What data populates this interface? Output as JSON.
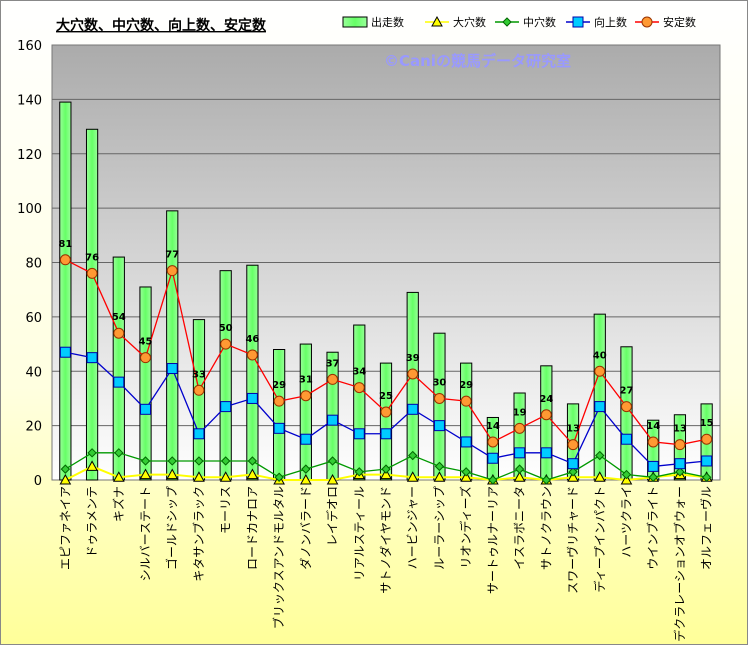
{
  "chart_data": {
    "type": "bar",
    "title": "大穴数、中穴数、向上数、安定数",
    "watermark": "©Caniの競馬データ研究室",
    "xlabel": "",
    "ylabel": "",
    "ylim": [
      0,
      160
    ],
    "yticks": [
      0,
      20,
      40,
      60,
      80,
      100,
      120,
      140,
      160
    ],
    "grid": true,
    "legend_position": "top-right",
    "categories": [
      "エピファネイア",
      "ドゥラメンテ",
      "キズナ",
      "シルバーステート",
      "ゴールドシップ",
      "キタサンブラック",
      "モーリス",
      "ロードカナロア",
      "ブリックスアンドモルタル",
      "ダノンバラード",
      "レイデオロ",
      "リアルスティール",
      "サトノダイヤモンド",
      "ハービンジャー",
      "ルーラーシップ",
      "リオンディーズ",
      "サートゥルナーリア",
      "イスラボニータ",
      "サトノクラウン",
      "スワーヴリチャード",
      "ディープインパクト",
      "ハーツクライ",
      "ウインブライト",
      "デクラレーションオブウォー",
      "オルフェーヴル"
    ],
    "series": [
      {
        "name": "出走数",
        "kind": "bar",
        "color": "#66ff66",
        "values": [
          139,
          129,
          82,
          71,
          99,
          59,
          77,
          79,
          48,
          50,
          47,
          57,
          43,
          69,
          54,
          43,
          23,
          32,
          42,
          28,
          61,
          49,
          22,
          24,
          28
        ]
      },
      {
        "name": "大穴数",
        "kind": "line",
        "color": "#ffff00",
        "marker": "triangle",
        "values": [
          0,
          5,
          1,
          2,
          2,
          1,
          1,
          2,
          0,
          0,
          0,
          2,
          2,
          1,
          1,
          1,
          0,
          1,
          0,
          1,
          1,
          0,
          1,
          2,
          1
        ]
      },
      {
        "name": "中穴数",
        "kind": "line",
        "color": "#009900",
        "marker": "diamond",
        "values": [
          4,
          10,
          10,
          7,
          7,
          7,
          7,
          7,
          1,
          4,
          7,
          3,
          4,
          9,
          5,
          3,
          0,
          4,
          0,
          3,
          9,
          2,
          1,
          3,
          1
        ]
      },
      {
        "name": "向上数",
        "kind": "line",
        "color": "#0000cc",
        "marker": "square",
        "values": [
          47,
          45,
          36,
          26,
          41,
          17,
          27,
          30,
          19,
          15,
          22,
          17,
          17,
          26,
          20,
          14,
          8,
          10,
          10,
          6,
          27,
          15,
          5,
          6,
          7
        ]
      },
      {
        "name": "安定数",
        "kind": "line",
        "color": "#ff0000",
        "marker": "circle",
        "labeled": true,
        "values": [
          81,
          76,
          54,
          45,
          77,
          33,
          50,
          46,
          29,
          31,
          37,
          34,
          25,
          39,
          30,
          29,
          14,
          19,
          24,
          13,
          40,
          27,
          14,
          13,
          15
        ]
      }
    ]
  }
}
